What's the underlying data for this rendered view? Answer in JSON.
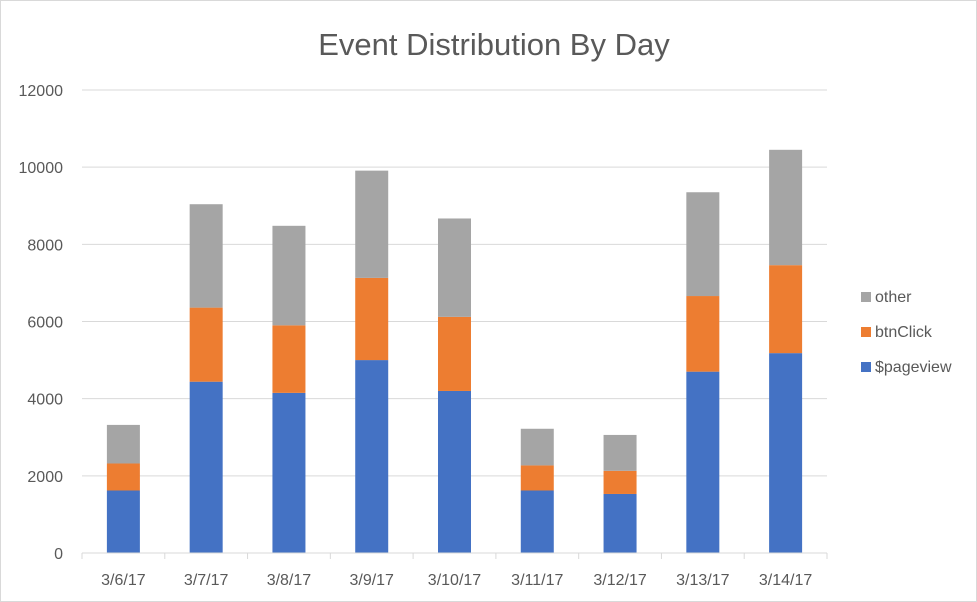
{
  "chart_data": {
    "type": "bar",
    "stacked": true,
    "title": "Event Distribution By Day",
    "xlabel": "",
    "ylabel": "",
    "ylim": [
      0,
      12000
    ],
    "yticks": [
      0,
      2000,
      4000,
      6000,
      8000,
      10000,
      12000
    ],
    "grid": true,
    "legend_position": "right",
    "categories": [
      "3/6/17",
      "3/7/17",
      "3/8/17",
      "3/9/17",
      "3/10/17",
      "3/11/17",
      "3/12/17",
      "3/13/17",
      "3/14/17"
    ],
    "series": [
      {
        "name": "$pageview",
        "color": "#4472c4",
        "values": [
          1620,
          4440,
          4150,
          5000,
          4200,
          1620,
          1530,
          4700,
          5180
        ]
      },
      {
        "name": "btnClick",
        "color": "#ed7d31",
        "values": [
          700,
          1920,
          1750,
          2130,
          1920,
          650,
          600,
          1960,
          2280
        ]
      },
      {
        "name": "other",
        "color": "#a5a5a5",
        "values": [
          1000,
          2680,
          2580,
          2780,
          2550,
          950,
          930,
          2690,
          2990
        ]
      }
    ],
    "legend_order": [
      "other",
      "btnClick",
      "$pageview"
    ]
  }
}
